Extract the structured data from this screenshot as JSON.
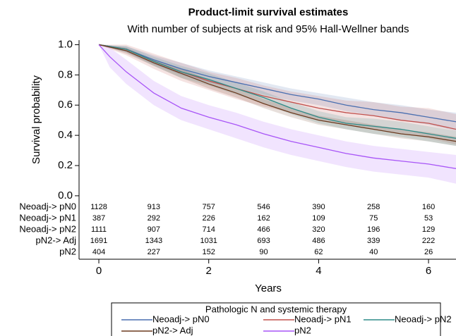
{
  "chart_data": {
    "type": "line",
    "title": "Product-limit survival estimates",
    "subtitle": "With number of subjects at risk and 95% Hall-Wellner bands",
    "x_label": "Years",
    "y_label": "Survival probability",
    "xlim": [
      -0.36,
      6.5
    ],
    "xticks": [
      0,
      2,
      4,
      6
    ],
    "ylim": [
      -0.42,
      1.03
    ],
    "yticks": [
      {
        "value": 0,
        "label": "0.0"
      },
      {
        "value": 0.2,
        "label": "0.2"
      },
      {
        "value": 0.4,
        "label": "0.4"
      },
      {
        "value": 0.6,
        "label": "0.6"
      },
      {
        "value": 0.8,
        "label": "0.8"
      },
      {
        "value": 1,
        "label": "1.0"
      }
    ],
    "legend_title": "Pathologic N and systemic therapy",
    "series": [
      {
        "name": "Neoadj-> pN0",
        "color": "#4a6fb0",
        "x": [
          0,
          0.5,
          1,
          1.5,
          2,
          2.5,
          3,
          3.5,
          4,
          4.5,
          5,
          5.5,
          6,
          6.5
        ],
        "values": [
          1,
          0.97,
          0.9,
          0.84,
          0.79,
          0.75,
          0.71,
          0.67,
          0.64,
          0.6,
          0.57,
          0.55,
          0.52,
          0.49
        ],
        "lower": [
          1,
          0.95,
          0.87,
          0.8,
          0.75,
          0.71,
          0.67,
          0.63,
          0.6,
          0.56,
          0.53,
          0.5,
          0.47,
          0.43
        ],
        "upper": [
          1,
          0.99,
          0.93,
          0.88,
          0.83,
          0.79,
          0.75,
          0.71,
          0.68,
          0.65,
          0.62,
          0.6,
          0.57,
          0.55
        ]
      },
      {
        "name": "Neoadj-> pN1",
        "color": "#c0504d",
        "x": [
          0,
          0.5,
          1,
          1.5,
          2,
          2.5,
          3,
          3.5,
          4,
          4.5,
          5,
          5.5,
          6,
          6.5
        ],
        "values": [
          1,
          0.97,
          0.89,
          0.82,
          0.76,
          0.71,
          0.66,
          0.62,
          0.58,
          0.55,
          0.53,
          0.5,
          0.48,
          0.44
        ],
        "lower": [
          1,
          0.93,
          0.84,
          0.76,
          0.7,
          0.64,
          0.59,
          0.55,
          0.5,
          0.47,
          0.44,
          0.41,
          0.38,
          0.34
        ],
        "upper": [
          1,
          1,
          0.94,
          0.88,
          0.82,
          0.78,
          0.73,
          0.69,
          0.66,
          0.63,
          0.62,
          0.59,
          0.58,
          0.54
        ]
      },
      {
        "name": "Neoadj-> pN2",
        "color": "#2e8b88",
        "x": [
          0,
          0.5,
          1,
          1.5,
          2,
          2.5,
          3,
          3.5,
          4,
          4.5,
          5,
          5.5,
          6,
          6.5
        ],
        "values": [
          1,
          0.97,
          0.89,
          0.82,
          0.77,
          0.71,
          0.65,
          0.58,
          0.52,
          0.48,
          0.46,
          0.44,
          0.41,
          0.38
        ],
        "lower": [
          1,
          0.95,
          0.86,
          0.78,
          0.73,
          0.67,
          0.61,
          0.54,
          0.48,
          0.44,
          0.41,
          0.39,
          0.36,
          0.33
        ],
        "upper": [
          1,
          0.99,
          0.92,
          0.86,
          0.81,
          0.75,
          0.69,
          0.62,
          0.56,
          0.52,
          0.51,
          0.49,
          0.46,
          0.43
        ]
      },
      {
        "name": "pN2-> Adj",
        "color": "#6b3a1f",
        "x": [
          0,
          0.5,
          1,
          1.5,
          2,
          2.5,
          3,
          3.5,
          4,
          4.5,
          5,
          5.5,
          6,
          6.5
        ],
        "values": [
          1,
          0.96,
          0.88,
          0.81,
          0.74,
          0.68,
          0.61,
          0.55,
          0.5,
          0.47,
          0.44,
          0.41,
          0.39,
          0.36
        ],
        "lower": [
          1,
          0.94,
          0.86,
          0.78,
          0.71,
          0.65,
          0.58,
          0.52,
          0.47,
          0.44,
          0.41,
          0.38,
          0.36,
          0.33
        ],
        "upper": [
          1,
          0.98,
          0.9,
          0.84,
          0.77,
          0.71,
          0.64,
          0.58,
          0.53,
          0.5,
          0.47,
          0.44,
          0.42,
          0.39
        ]
      },
      {
        "name": "pN2",
        "color": "#a855f7",
        "x": [
          0,
          0.2,
          0.5,
          1,
          1.5,
          2,
          2.5,
          3,
          3.5,
          4,
          4.5,
          5,
          5.5,
          6,
          6.5
        ],
        "values": [
          1,
          0.92,
          0.82,
          0.68,
          0.58,
          0.52,
          0.47,
          0.41,
          0.36,
          0.32,
          0.28,
          0.25,
          0.23,
          0.21,
          0.18
        ],
        "lower": [
          1,
          0.85,
          0.74,
          0.6,
          0.5,
          0.44,
          0.38,
          0.32,
          0.27,
          0.23,
          0.19,
          0.16,
          0.14,
          0.12,
          0.08
        ],
        "upper": [
          1,
          0.98,
          0.9,
          0.76,
          0.66,
          0.6,
          0.55,
          0.49,
          0.44,
          0.4,
          0.36,
          0.33,
          0.31,
          0.29,
          0.27
        ]
      }
    ],
    "at_risk": {
      "times": [
        0,
        1,
        2,
        3,
        4,
        5,
        6
      ],
      "rows": [
        {
          "label": "Neoadj-> pN0",
          "counts": [
            1128,
            913,
            757,
            546,
            390,
            258,
            160
          ]
        },
        {
          "label": "Neoadj-> pN1",
          "counts": [
            387,
            292,
            226,
            162,
            109,
            75,
            53
          ]
        },
        {
          "label": "Neoadj-> pN2",
          "counts": [
            1111,
            907,
            714,
            466,
            320,
            196,
            129
          ]
        },
        {
          "label": "pN2-> Adj",
          "counts": [
            1691,
            1343,
            1031,
            693,
            486,
            339,
            222
          ]
        },
        {
          "label": "pN2",
          "counts": [
            404,
            227,
            152,
            90,
            62,
            40,
            26
          ]
        }
      ]
    }
  }
}
